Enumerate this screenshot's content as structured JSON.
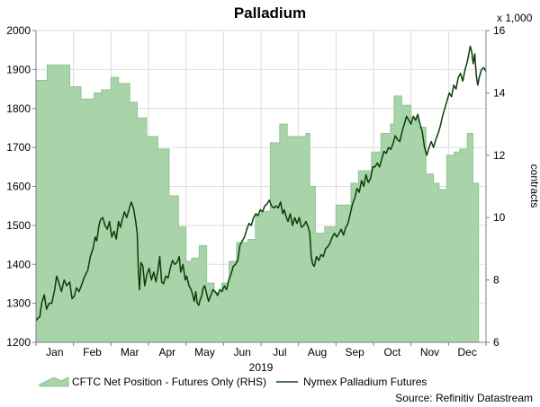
{
  "chart_data": {
    "type": "line",
    "title": "Palladium",
    "year_label": "2019",
    "x_categories": [
      "Jan",
      "Feb",
      "Mar",
      "Apr",
      "May",
      "Jun",
      "Jul",
      "Aug",
      "Sep",
      "Oct",
      "Nov",
      "Dec"
    ],
    "left_axis": {
      "ylim": [
        1200,
        2000
      ],
      "ticks": [
        "1200",
        "1300",
        "1400",
        "1500",
        "1600",
        "1700",
        "1800",
        "1900",
        "2000"
      ]
    },
    "right_axis": {
      "label": "contracts",
      "multiplier": "x 1,000",
      "ylim": [
        6,
        16
      ],
      "ticks": [
        "6",
        "8",
        "10",
        "12",
        "14",
        "16"
      ]
    },
    "colors": {
      "area_fill": "#a9d3a9",
      "area_edge": "#8fc58f",
      "line": "#0b3d0b",
      "grid": "#dddddd",
      "axis": "#808080"
    },
    "series": [
      {
        "name": "CFTC Net Position - Futures Only (RHS)",
        "type": "area",
        "axis": "right",
        "unit": "thousand contracts",
        "points": [
          [
            0.0,
            14.4
          ],
          [
            0.3,
            14.4
          ],
          [
            0.3,
            14.9
          ],
          [
            0.9,
            14.9
          ],
          [
            0.9,
            14.2
          ],
          [
            1.2,
            14.2
          ],
          [
            1.2,
            13.8
          ],
          [
            1.55,
            13.8
          ],
          [
            1.55,
            14.0
          ],
          [
            1.75,
            14.0
          ],
          [
            1.75,
            14.1
          ],
          [
            2.0,
            14.1
          ],
          [
            2.0,
            14.5
          ],
          [
            2.2,
            14.5
          ],
          [
            2.2,
            14.3
          ],
          [
            2.5,
            14.3
          ],
          [
            2.5,
            13.7
          ],
          [
            2.7,
            13.7
          ],
          [
            2.7,
            13.2
          ],
          [
            2.95,
            13.2
          ],
          [
            2.95,
            12.6
          ],
          [
            3.25,
            12.6
          ],
          [
            3.25,
            12.2
          ],
          [
            3.55,
            12.2
          ],
          [
            3.55,
            10.7
          ],
          [
            3.8,
            10.7
          ],
          [
            3.8,
            9.7
          ],
          [
            4.0,
            9.7
          ],
          [
            4.0,
            8.6
          ],
          [
            4.15,
            8.6
          ],
          [
            4.15,
            8.7
          ],
          [
            4.35,
            8.7
          ],
          [
            4.35,
            9.1
          ],
          [
            4.55,
            9.1
          ],
          [
            4.55,
            7.9
          ],
          [
            4.75,
            7.9
          ],
          [
            4.75,
            7.6
          ],
          [
            4.95,
            7.6
          ],
          [
            4.95,
            7.9
          ],
          [
            5.15,
            7.9
          ],
          [
            5.15,
            8.6
          ],
          [
            5.35,
            8.6
          ],
          [
            5.35,
            9.2
          ],
          [
            5.65,
            9.2
          ],
          [
            5.65,
            9.3
          ],
          [
            5.85,
            9.3
          ],
          [
            5.85,
            10.1
          ],
          [
            6.0,
            10.1
          ],
          [
            6.0,
            10.2
          ],
          [
            6.25,
            10.2
          ],
          [
            6.25,
            12.4
          ],
          [
            6.5,
            12.4
          ],
          [
            6.5,
            13.0
          ],
          [
            6.7,
            13.0
          ],
          [
            6.7,
            12.6
          ],
          [
            7.2,
            12.6
          ],
          [
            7.2,
            12.7
          ],
          [
            7.3,
            12.7
          ],
          [
            7.3,
            11.0
          ],
          [
            7.45,
            11.0
          ],
          [
            7.45,
            9.5
          ],
          [
            7.7,
            9.5
          ],
          [
            7.7,
            9.7
          ],
          [
            8.0,
            9.7
          ],
          [
            8.0,
            10.4
          ],
          [
            8.4,
            10.4
          ],
          [
            8.4,
            11.1
          ],
          [
            8.6,
            11.1
          ],
          [
            8.6,
            11.5
          ],
          [
            8.95,
            11.5
          ],
          [
            8.95,
            12.1
          ],
          [
            9.2,
            12.1
          ],
          [
            9.2,
            12.7
          ],
          [
            9.45,
            12.7
          ],
          [
            9.45,
            13.0
          ],
          [
            9.55,
            13.0
          ],
          [
            9.55,
            13.9
          ],
          [
            9.75,
            13.9
          ],
          [
            9.75,
            13.6
          ],
          [
            10.0,
            13.6
          ],
          [
            10.0,
            13.2
          ],
          [
            10.2,
            13.2
          ],
          [
            10.2,
            12.9
          ],
          [
            10.4,
            12.9
          ],
          [
            10.4,
            11.4
          ],
          [
            10.6,
            11.4
          ],
          [
            10.6,
            11.1
          ],
          [
            10.75,
            11.1
          ],
          [
            10.75,
            10.9
          ],
          [
            10.95,
            10.9
          ],
          [
            10.95,
            12.0
          ],
          [
            11.15,
            12.0
          ],
          [
            11.15,
            12.1
          ],
          [
            11.3,
            12.1
          ],
          [
            11.3,
            12.2
          ],
          [
            11.5,
            12.2
          ],
          [
            11.5,
            12.7
          ],
          [
            11.65,
            12.7
          ],
          [
            11.65,
            11.1
          ],
          [
            11.8,
            11.1
          ]
        ]
      },
      {
        "name": "Nymex Palladium Futures",
        "type": "line",
        "axis": "left",
        "unit": "USD/oz",
        "points": [
          [
            0.0,
            1255
          ],
          [
            0.05,
            1262
          ],
          [
            0.1,
            1265
          ],
          [
            0.15,
            1300
          ],
          [
            0.22,
            1322
          ],
          [
            0.28,
            1285
          ],
          [
            0.35,
            1300
          ],
          [
            0.42,
            1300
          ],
          [
            0.5,
            1335
          ],
          [
            0.55,
            1370
          ],
          [
            0.62,
            1350
          ],
          [
            0.68,
            1330
          ],
          [
            0.75,
            1360
          ],
          [
            0.82,
            1345
          ],
          [
            0.9,
            1355
          ],
          [
            0.96,
            1312
          ],
          [
            1.02,
            1318
          ],
          [
            1.08,
            1340
          ],
          [
            1.15,
            1330
          ],
          [
            1.22,
            1348
          ],
          [
            1.3,
            1370
          ],
          [
            1.38,
            1385
          ],
          [
            1.45,
            1420
          ],
          [
            1.52,
            1440
          ],
          [
            1.58,
            1470
          ],
          [
            1.62,
            1460
          ],
          [
            1.68,
            1500
          ],
          [
            1.72,
            1515
          ],
          [
            1.78,
            1520
          ],
          [
            1.84,
            1500
          ],
          [
            1.9,
            1490
          ],
          [
            1.96,
            1510
          ],
          [
            2.02,
            1470
          ],
          [
            2.08,
            1485
          ],
          [
            2.14,
            1465
          ],
          [
            2.2,
            1510
          ],
          [
            2.25,
            1495
          ],
          [
            2.3,
            1515
          ],
          [
            2.36,
            1535
          ],
          [
            2.42,
            1520
          ],
          [
            2.48,
            1540
          ],
          [
            2.54,
            1560
          ],
          [
            2.6,
            1545
          ],
          [
            2.66,
            1510
          ],
          [
            2.7,
            1478
          ],
          [
            2.73,
            1380
          ],
          [
            2.76,
            1335
          ],
          [
            2.8,
            1405
          ],
          [
            2.85,
            1395
          ],
          [
            2.9,
            1345
          ],
          [
            2.96,
            1375
          ],
          [
            3.02,
            1390
          ],
          [
            3.08,
            1360
          ],
          [
            3.14,
            1380
          ],
          [
            3.2,
            1355
          ],
          [
            3.26,
            1390
          ],
          [
            3.3,
            1420
          ],
          [
            3.35,
            1355
          ],
          [
            3.4,
            1350
          ],
          [
            3.46,
            1370
          ],
          [
            3.52,
            1365
          ],
          [
            3.58,
            1390
          ],
          [
            3.64,
            1410
          ],
          [
            3.7,
            1400
          ],
          [
            3.76,
            1405
          ],
          [
            3.82,
            1420
          ],
          [
            3.86,
            1380
          ],
          [
            3.92,
            1400
          ],
          [
            3.98,
            1360
          ],
          [
            4.02,
            1370
          ],
          [
            4.08,
            1345
          ],
          [
            4.14,
            1335
          ],
          [
            4.18,
            1320
          ],
          [
            4.22,
            1305
          ],
          [
            4.26,
            1330
          ],
          [
            4.3,
            1300
          ],
          [
            4.34,
            1295
          ],
          [
            4.38,
            1310
          ],
          [
            4.42,
            1320
          ],
          [
            4.46,
            1340
          ],
          [
            4.5,
            1345
          ],
          [
            4.55,
            1325
          ],
          [
            4.6,
            1305
          ],
          [
            4.66,
            1320
          ],
          [
            4.72,
            1335
          ],
          [
            4.78,
            1330
          ],
          [
            4.84,
            1320
          ],
          [
            4.9,
            1335
          ],
          [
            4.96,
            1330
          ],
          [
            5.02,
            1345
          ],
          [
            5.08,
            1335
          ],
          [
            5.14,
            1360
          ],
          [
            5.2,
            1375
          ],
          [
            5.26,
            1395
          ],
          [
            5.32,
            1400
          ],
          [
            5.38,
            1410
          ],
          [
            5.44,
            1450
          ],
          [
            5.5,
            1460
          ],
          [
            5.56,
            1470
          ],
          [
            5.62,
            1490
          ],
          [
            5.68,
            1505
          ],
          [
            5.74,
            1500
          ],
          [
            5.8,
            1520
          ],
          [
            5.86,
            1530
          ],
          [
            5.92,
            1525
          ],
          [
            5.98,
            1540
          ],
          [
            6.04,
            1535
          ],
          [
            6.1,
            1550
          ],
          [
            6.16,
            1555
          ],
          [
            6.22,
            1565
          ],
          [
            6.28,
            1550
          ],
          [
            6.34,
            1545
          ],
          [
            6.4,
            1550
          ],
          [
            6.46,
            1545
          ],
          [
            6.52,
            1560
          ],
          [
            6.58,
            1530
          ],
          [
            6.62,
            1540
          ],
          [
            6.68,
            1520
          ],
          [
            6.72,
            1510
          ],
          [
            6.78,
            1530
          ],
          [
            6.84,
            1500
          ],
          [
            6.9,
            1520
          ],
          [
            6.96,
            1505
          ],
          [
            7.02,
            1520
          ],
          [
            7.08,
            1495
          ],
          [
            7.14,
            1500
          ],
          [
            7.2,
            1510
          ],
          [
            7.26,
            1495
          ],
          [
            7.3,
            1480
          ],
          [
            7.34,
            1420
          ],
          [
            7.38,
            1400
          ],
          [
            7.42,
            1395
          ],
          [
            7.48,
            1420
          ],
          [
            7.54,
            1410
          ],
          [
            7.6,
            1425
          ],
          [
            7.66,
            1420
          ],
          [
            7.72,
            1440
          ],
          [
            7.78,
            1445
          ],
          [
            7.84,
            1455
          ],
          [
            7.9,
            1470
          ],
          [
            7.96,
            1480
          ],
          [
            8.02,
            1470
          ],
          [
            8.08,
            1480
          ],
          [
            8.14,
            1490
          ],
          [
            8.2,
            1475
          ],
          [
            8.26,
            1495
          ],
          [
            8.32,
            1505
          ],
          [
            8.38,
            1530
          ],
          [
            8.44,
            1555
          ],
          [
            8.5,
            1570
          ],
          [
            8.56,
            1595
          ],
          [
            8.62,
            1585
          ],
          [
            8.68,
            1615
          ],
          [
            8.74,
            1600
          ],
          [
            8.8,
            1630
          ],
          [
            8.86,
            1610
          ],
          [
            8.92,
            1620
          ],
          [
            8.98,
            1650
          ],
          [
            9.04,
            1650
          ],
          [
            9.1,
            1660
          ],
          [
            9.16,
            1650
          ],
          [
            9.22,
            1670
          ],
          [
            9.28,
            1690
          ],
          [
            9.34,
            1685
          ],
          [
            9.4,
            1700
          ],
          [
            9.46,
            1695
          ],
          [
            9.52,
            1710
          ],
          [
            9.58,
            1730
          ],
          [
            9.64,
            1720
          ],
          [
            9.7,
            1715
          ],
          [
            9.76,
            1740
          ],
          [
            9.82,
            1760
          ],
          [
            9.88,
            1780
          ],
          [
            9.94,
            1770
          ],
          [
            10.0,
            1760
          ],
          [
            10.06,
            1780
          ],
          [
            10.12,
            1770
          ],
          [
            10.18,
            1785
          ],
          [
            10.24,
            1760
          ],
          [
            10.3,
            1740
          ],
          [
            10.36,
            1700
          ],
          [
            10.42,
            1680
          ],
          [
            10.48,
            1700
          ],
          [
            10.54,
            1715
          ],
          [
            10.6,
            1700
          ],
          [
            10.66,
            1720
          ],
          [
            10.72,
            1735
          ],
          [
            10.78,
            1755
          ],
          [
            10.84,
            1780
          ],
          [
            10.9,
            1800
          ],
          [
            10.96,
            1820
          ],
          [
            11.02,
            1840
          ],
          [
            11.08,
            1830
          ],
          [
            11.14,
            1860
          ],
          [
            11.2,
            1850
          ],
          [
            11.26,
            1880
          ],
          [
            11.32,
            1890
          ],
          [
            11.38,
            1870
          ],
          [
            11.44,
            1900
          ],
          [
            11.5,
            1920
          ],
          [
            11.55,
            1945
          ],
          [
            11.58,
            1960
          ],
          [
            11.62,
            1945
          ],
          [
            11.66,
            1915
          ],
          [
            11.7,
            1940
          ],
          [
            11.74,
            1885
          ],
          [
            11.78,
            1860
          ],
          [
            11.82,
            1880
          ],
          [
            11.88,
            1900
          ],
          [
            11.94,
            1905
          ],
          [
            12.0,
            1895
          ]
        ]
      }
    ],
    "source": "Source: Refinitiv Datastream"
  }
}
